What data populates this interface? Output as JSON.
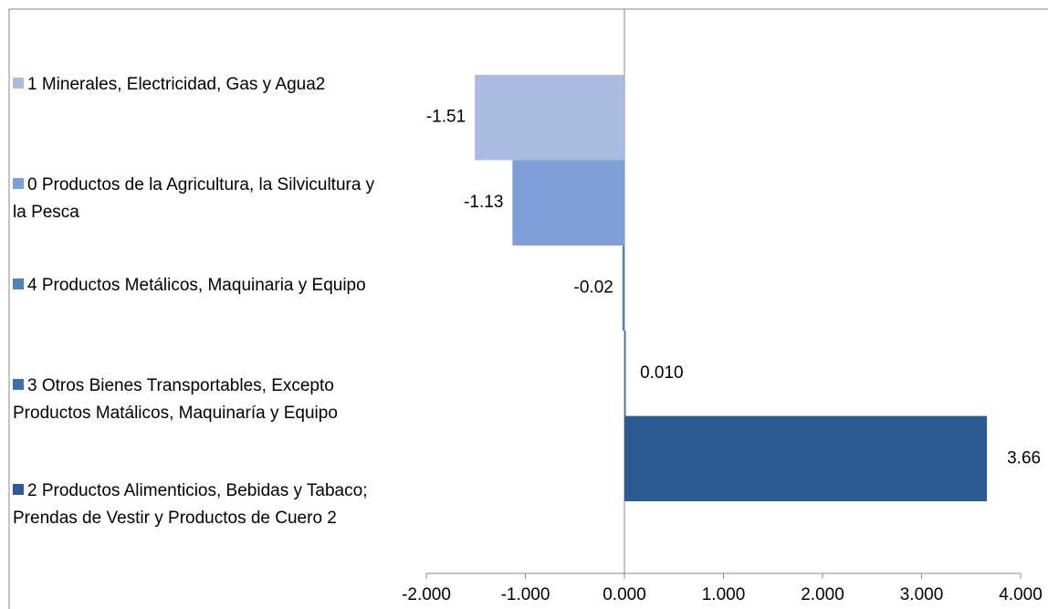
{
  "chart_data": {
    "type": "bar",
    "orientation": "horizontal",
    "categories": [
      null
    ],
    "series": [
      {
        "name": "1 Minerales, Electricidad, Gas y Agua2",
        "color": "#a9bbde",
        "values": [
          -1.51
        ],
        "value_labels": [
          "-1.51"
        ]
      },
      {
        "name": "0  Productos de la Agricultura, la Silvicultura y la Pesca",
        "color": "#7d9ed6",
        "values": [
          -1.13
        ],
        "value_labels": [
          "-1.13"
        ]
      },
      {
        "name": "4  Productos Metálicos, Maquinaria y Equipo",
        "color": "#4f81bd",
        "values": [
          -0.02
        ],
        "value_labels": [
          "-0.02"
        ]
      },
      {
        "name": "3  Otros Bienes Transportables, Excepto Productos Matálicos, Maquinaría y Equipo",
        "color": "#3a6fb0",
        "values": [
          0.01
        ],
        "value_labels": [
          "0.010"
        ]
      },
      {
        "name": "2  Productos Alimenticios, Bebidas y Tabaco; Prendas de Vestir y Productos de Cuero 2",
        "color": "#2c5a94",
        "values": [
          3.66
        ],
        "value_labels": [
          "3.66"
        ]
      }
    ],
    "xlim": [
      -2,
      4
    ],
    "xticks": [
      {
        "value": -2,
        "label": "-2.000"
      },
      {
        "value": -1,
        "label": "-1.000"
      },
      {
        "value": 0,
        "label": "0.000"
      },
      {
        "value": 1,
        "label": "1.000"
      },
      {
        "value": 2,
        "label": "2.000"
      },
      {
        "value": 3,
        "label": "3.000"
      },
      {
        "value": 4,
        "label": "4.000"
      }
    ],
    "grid": false,
    "legend": "left"
  }
}
